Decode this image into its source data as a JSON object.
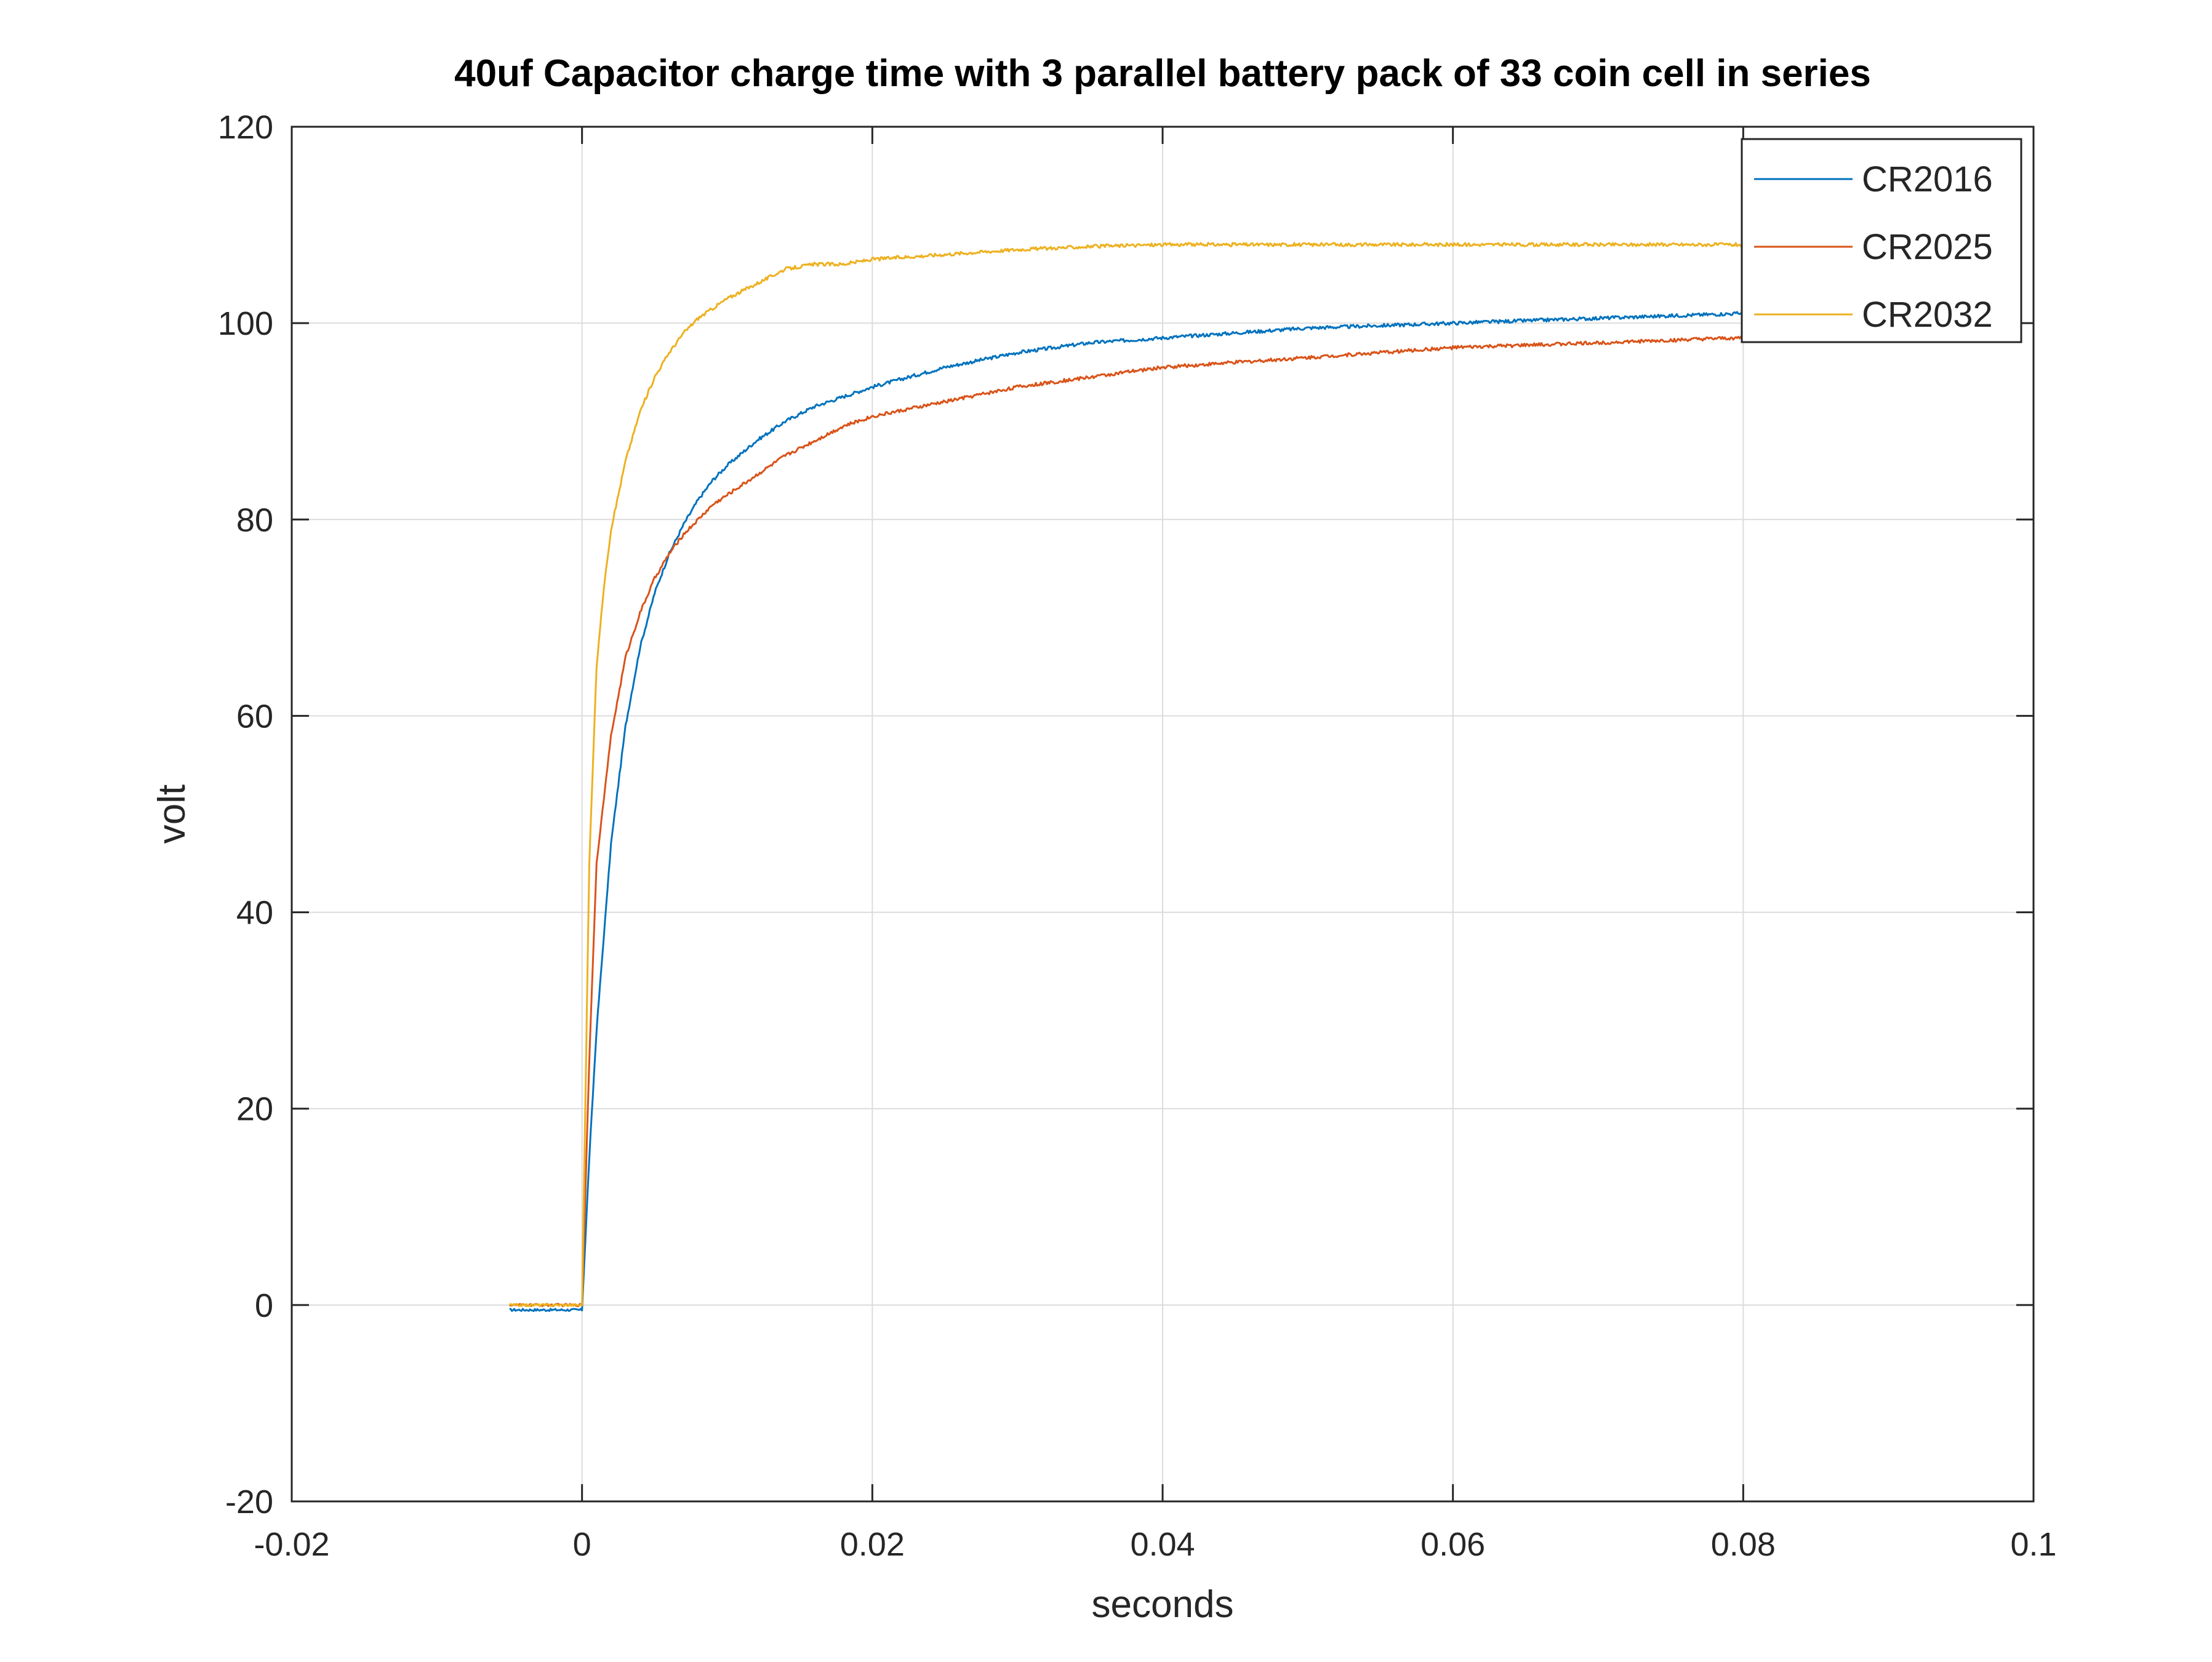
{
  "chart_data": {
    "type": "line",
    "title": "40uf Capacitor charge time with 3 parallel battery pack of 33 coin cell in series",
    "xlabel": "seconds",
    "ylabel": "volt",
    "xlim": [
      -0.02,
      0.1
    ],
    "ylim": [
      -20,
      120
    ],
    "xticks": [
      -0.02,
      0,
      0.02,
      0.04,
      0.06,
      0.08,
      0.1
    ],
    "xtick_labels": [
      "-0.02",
      "0",
      "0.02",
      "0.04",
      "0.06",
      "0.08",
      "0.1"
    ],
    "yticks": [
      -20,
      0,
      20,
      40,
      60,
      80,
      100,
      120
    ],
    "ytick_labels": [
      "-20",
      "0",
      "20",
      "40",
      "60",
      "80",
      "100",
      "120"
    ],
    "grid": true,
    "legend_position": "top-right",
    "series": [
      {
        "name": "CR2016",
        "color": "#0072BD",
        "x": [
          -0.005,
          -0.003,
          -0.001,
          0,
          0.0005,
          0.001,
          0.002,
          0.003,
          0.004,
          0.005,
          0.006,
          0.007,
          0.008,
          0.009,
          0.01,
          0.012,
          0.014,
          0.016,
          0.018,
          0.02,
          0.025,
          0.03,
          0.035,
          0.04,
          0.05,
          0.06,
          0.07,
          0.08
        ],
        "y": [
          -0.5,
          -0.5,
          -0.5,
          -0.5,
          15,
          28,
          47,
          59,
          67,
          72.5,
          76.5,
          79.5,
          82,
          84,
          85.5,
          88,
          90,
          91.5,
          92.5,
          93.5,
          95.5,
          97,
          98,
          98.5,
          99.5,
          100,
          100.5,
          101
        ]
      },
      {
        "name": "CR2025",
        "color": "#D95319",
        "x": [
          -0.005,
          -0.003,
          -0.001,
          0,
          0.0005,
          0.001,
          0.002,
          0.003,
          0.004,
          0.005,
          0.006,
          0.007,
          0.008,
          0.009,
          0.01,
          0.012,
          0.014,
          0.016,
          0.018,
          0.02,
          0.025,
          0.03,
          0.035,
          0.04,
          0.05,
          0.06,
          0.07,
          0.08
        ],
        "y": [
          0,
          0,
          0,
          0,
          25,
          45,
          58,
          66,
          70.5,
          74,
          76.5,
          78.5,
          80,
          81.5,
          82.5,
          84.5,
          86.5,
          88,
          89.5,
          90.5,
          92,
          93.5,
          94.5,
          95.5,
          96.5,
          97.5,
          98,
          98.5
        ]
      },
      {
        "name": "CR2032",
        "color": "#EDB120",
        "x": [
          -0.005,
          -0.003,
          -0.001,
          0,
          0.0005,
          0.001,
          0.0015,
          0.002,
          0.003,
          0.004,
          0.005,
          0.006,
          0.007,
          0.008,
          0.009,
          0.01,
          0.012,
          0.014,
          0.016,
          0.018,
          0.02,
          0.025,
          0.03,
          0.035,
          0.04,
          0.05,
          0.06,
          0.07,
          0.08
        ],
        "y": [
          0,
          0,
          0,
          0,
          45,
          65,
          73,
          79,
          86,
          91,
          94.5,
          97,
          99,
          100.5,
          101.5,
          102.5,
          104,
          105.5,
          106,
          106,
          106.5,
          107,
          107.5,
          107.8,
          108,
          108,
          108,
          108,
          108
        ]
      }
    ]
  }
}
